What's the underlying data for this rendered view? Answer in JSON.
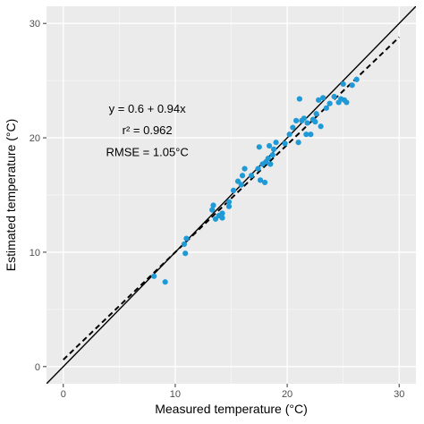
{
  "chart_data": {
    "type": "scatter",
    "title": "",
    "xlabel": "Measured temperature (°C)",
    "ylabel": "Estimated temperature (°C)",
    "xlim": [
      -1.5,
      31.5
    ],
    "ylim": [
      -1.5,
      31.5
    ],
    "x_ticks": [
      0,
      10,
      20,
      30
    ],
    "y_ticks": [
      0,
      10,
      20,
      30
    ],
    "x_tick_labels": [
      "0",
      "10",
      "20",
      "30"
    ],
    "y_tick_labels": [
      "0",
      "10",
      "20",
      "30"
    ],
    "grid": true,
    "background": "#ebebeb",
    "point_color": "#1f9ad6",
    "annotations": [
      "y = 0.6 + 0.94x",
      "r² = 0.962",
      "RMSE = 1.05°C"
    ],
    "reference_line": {
      "intercept": 0,
      "slope": 1,
      "style": "solid",
      "color": "#000000"
    },
    "fit_line": {
      "intercept": 0.6,
      "slope": 0.94,
      "style": "dashed",
      "color": "#000000",
      "x_range": [
        0,
        30
      ]
    },
    "points": [
      {
        "x": 8.1,
        "y": 7.9
      },
      {
        "x": 9.1,
        "y": 7.4
      },
      {
        "x": 10.9,
        "y": 9.9
      },
      {
        "x": 10.8,
        "y": 10.7
      },
      {
        "x": 11.0,
        "y": 11.2
      },
      {
        "x": 13.3,
        "y": 13.7
      },
      {
        "x": 13.4,
        "y": 14.1
      },
      {
        "x": 13.6,
        "y": 12.9
      },
      {
        "x": 13.9,
        "y": 13.2
      },
      {
        "x": 14.2,
        "y": 13.0
      },
      {
        "x": 14.2,
        "y": 13.4
      },
      {
        "x": 14.8,
        "y": 14.0
      },
      {
        "x": 14.8,
        "y": 14.4
      },
      {
        "x": 15.2,
        "y": 15.4
      },
      {
        "x": 15.6,
        "y": 16.2
      },
      {
        "x": 15.9,
        "y": 15.9
      },
      {
        "x": 16.0,
        "y": 16.7
      },
      {
        "x": 16.2,
        "y": 17.3
      },
      {
        "x": 16.8,
        "y": 16.7
      },
      {
        "x": 17.4,
        "y": 17.3
      },
      {
        "x": 17.5,
        "y": 19.2
      },
      {
        "x": 17.6,
        "y": 16.3
      },
      {
        "x": 17.8,
        "y": 17.7
      },
      {
        "x": 18.0,
        "y": 16.1
      },
      {
        "x": 18.1,
        "y": 17.9
      },
      {
        "x": 18.3,
        "y": 18.2
      },
      {
        "x": 18.4,
        "y": 19.3
      },
      {
        "x": 18.5,
        "y": 17.7
      },
      {
        "x": 18.7,
        "y": 18.5
      },
      {
        "x": 18.8,
        "y": 19.0
      },
      {
        "x": 19.0,
        "y": 19.6
      },
      {
        "x": 19.8,
        "y": 19.5
      },
      {
        "x": 20.2,
        "y": 20.3
      },
      {
        "x": 20.5,
        "y": 20.9
      },
      {
        "x": 20.8,
        "y": 21.5
      },
      {
        "x": 21.0,
        "y": 19.6
      },
      {
        "x": 21.1,
        "y": 23.4
      },
      {
        "x": 21.3,
        "y": 21.5
      },
      {
        "x": 21.5,
        "y": 21.7
      },
      {
        "x": 21.7,
        "y": 20.3
      },
      {
        "x": 21.8,
        "y": 21.3
      },
      {
        "x": 22.1,
        "y": 20.3
      },
      {
        "x": 22.3,
        "y": 21.6
      },
      {
        "x": 22.5,
        "y": 21.4
      },
      {
        "x": 22.6,
        "y": 22.1
      },
      {
        "x": 22.8,
        "y": 23.3
      },
      {
        "x": 23.0,
        "y": 21.0
      },
      {
        "x": 23.2,
        "y": 23.5
      },
      {
        "x": 23.5,
        "y": 22.6
      },
      {
        "x": 23.8,
        "y": 23.0
      },
      {
        "x": 24.2,
        "y": 23.6
      },
      {
        "x": 24.6,
        "y": 23.1
      },
      {
        "x": 24.8,
        "y": 23.4
      },
      {
        "x": 25.0,
        "y": 24.7
      },
      {
        "x": 25.1,
        "y": 23.3
      },
      {
        "x": 25.3,
        "y": 23.1
      },
      {
        "x": 25.8,
        "y": 24.6
      },
      {
        "x": 26.2,
        "y": 25.1
      }
    ]
  }
}
